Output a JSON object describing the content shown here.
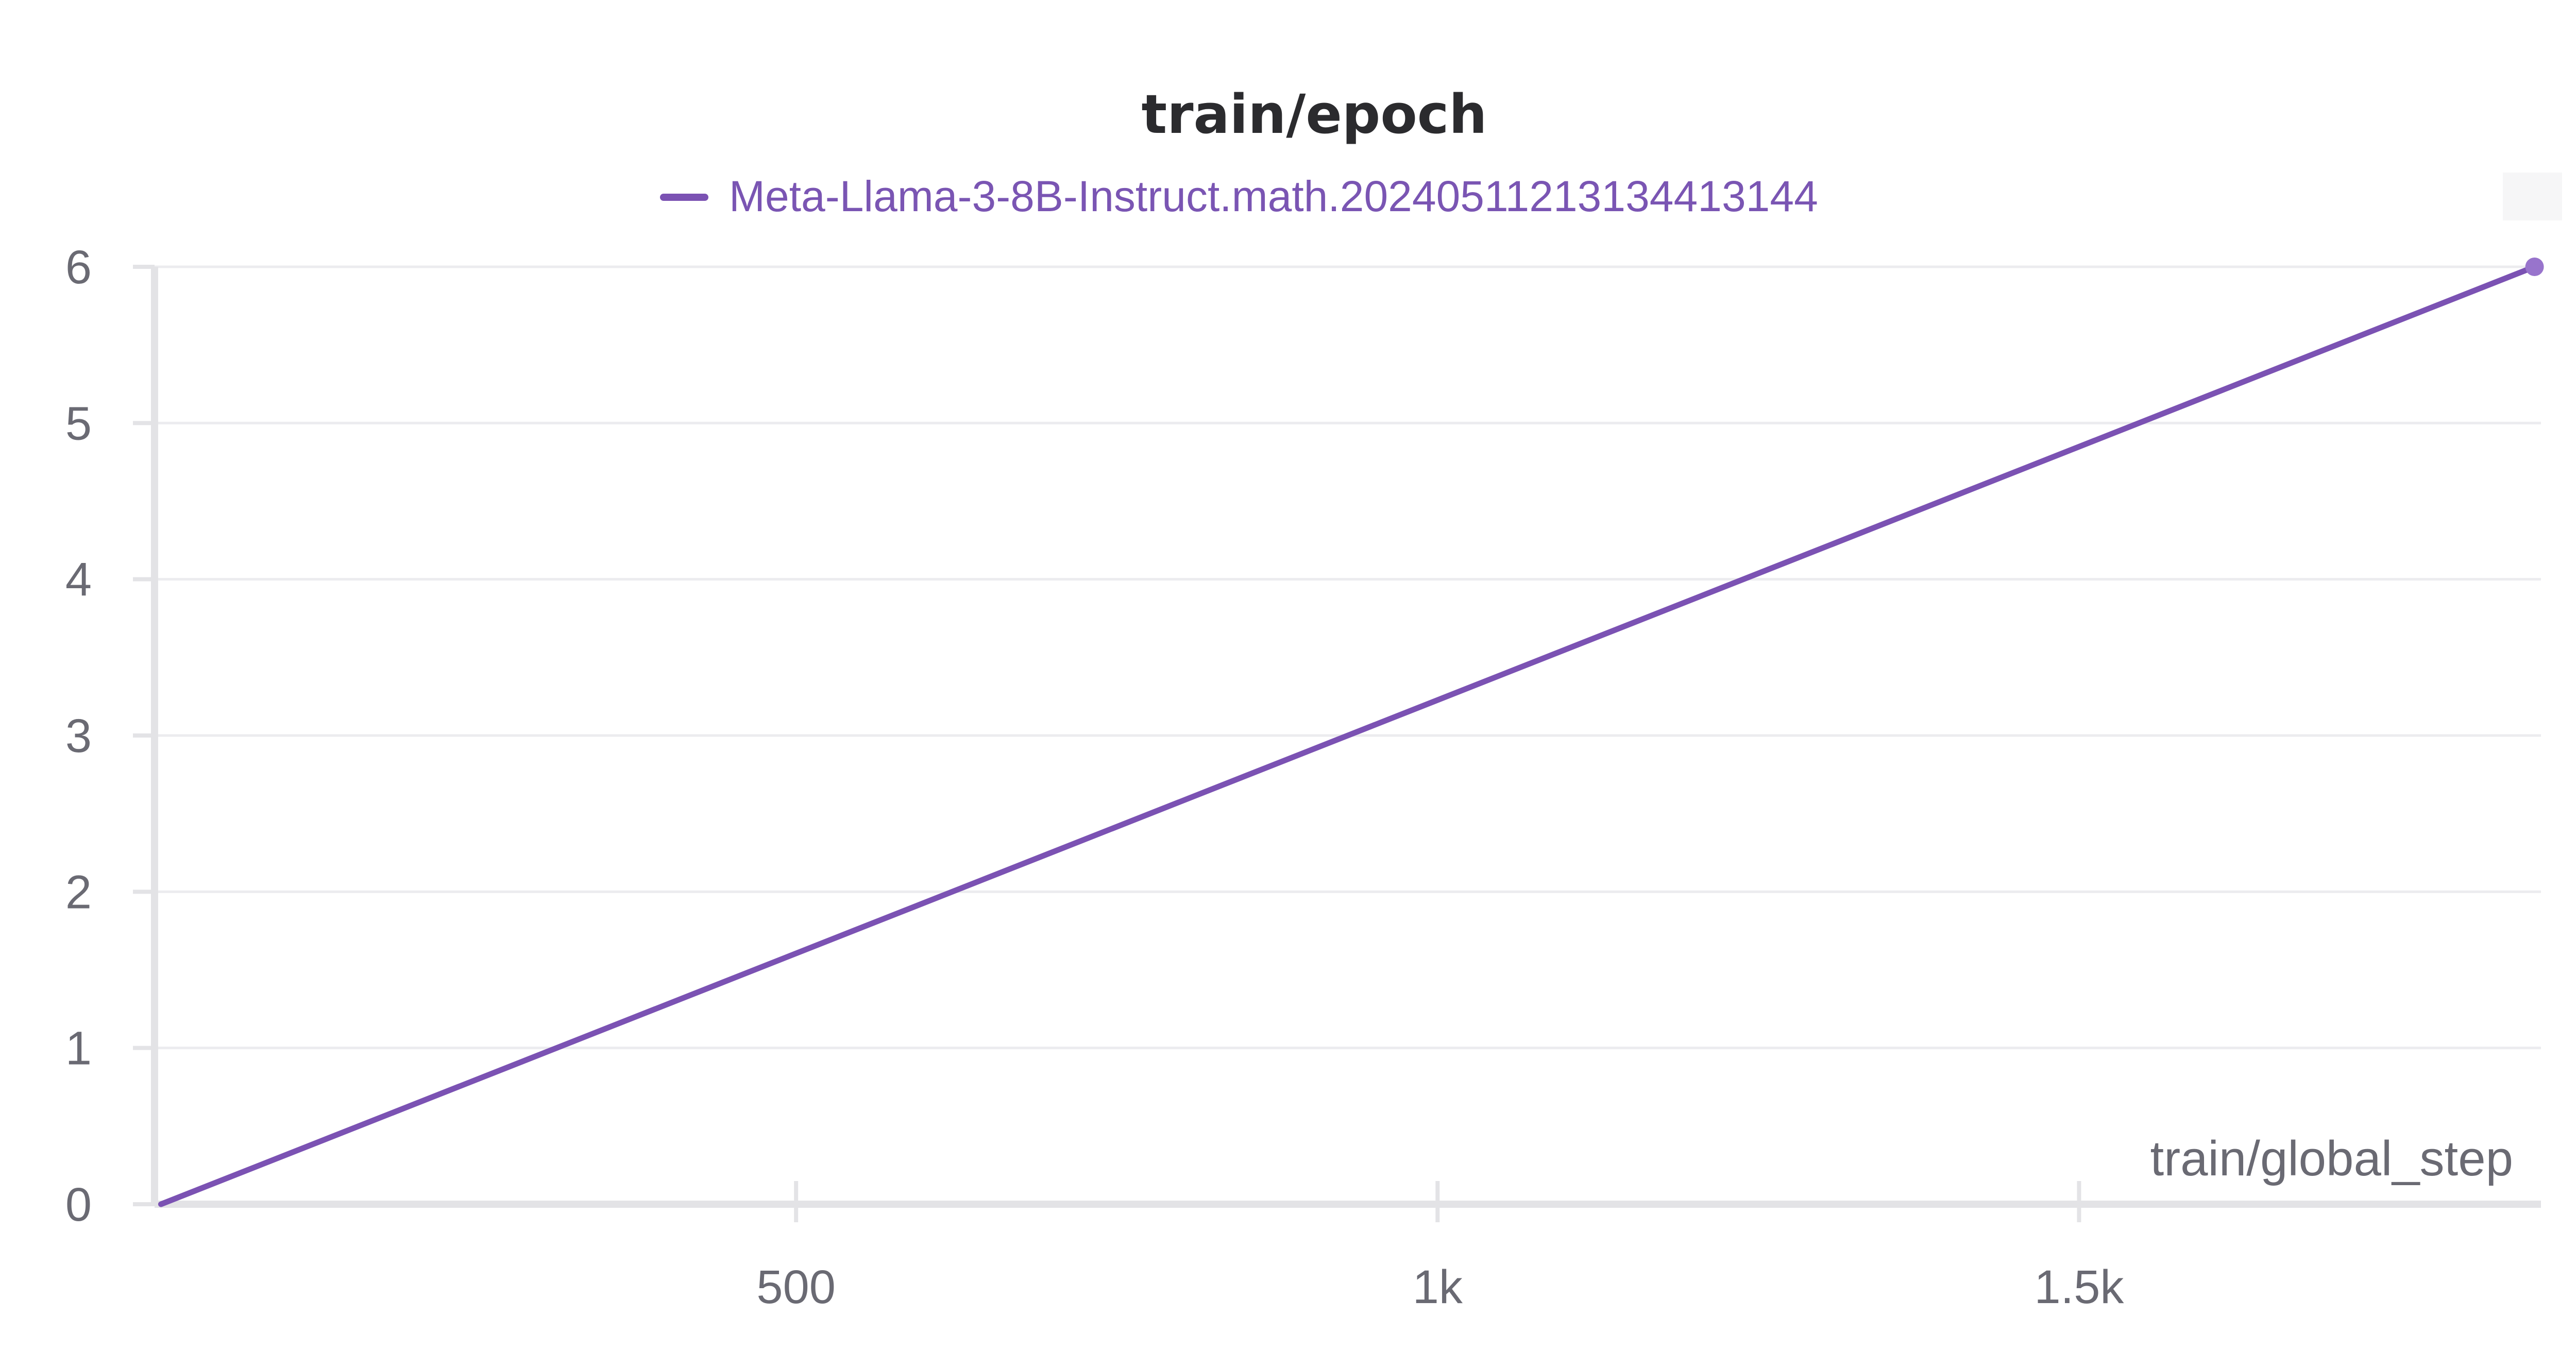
{
  "colors": {
    "series": "#7b52b3",
    "axis": "#e3e3e6",
    "grid": "#ececef",
    "text": "#6a6a73"
  },
  "chart_data": {
    "type": "line",
    "title": "train/epoch",
    "xlabel": "train/global_step",
    "ylabel": "",
    "xlim": [
      0,
      1860
    ],
    "ylim": [
      0,
      6
    ],
    "x_ticks": [
      {
        "value": 500,
        "label": "500"
      },
      {
        "value": 1000,
        "label": "1k"
      },
      {
        "value": 1500,
        "label": "1.5k"
      }
    ],
    "y_ticks": [
      {
        "value": 0,
        "label": "0"
      },
      {
        "value": 1,
        "label": "1"
      },
      {
        "value": 2,
        "label": "2"
      },
      {
        "value": 3,
        "label": "3"
      },
      {
        "value": 4,
        "label": "4"
      },
      {
        "value": 5,
        "label": "5"
      },
      {
        "value": 6,
        "label": "6"
      }
    ],
    "grid": true,
    "legend": "top-center",
    "series": [
      {
        "name": "Meta-Llama-3-8B-Instruct.math.20240511213134413144",
        "color": "#7b52b3",
        "x": [
          5,
          1855
        ],
        "y": [
          0,
          6
        ]
      }
    ]
  }
}
